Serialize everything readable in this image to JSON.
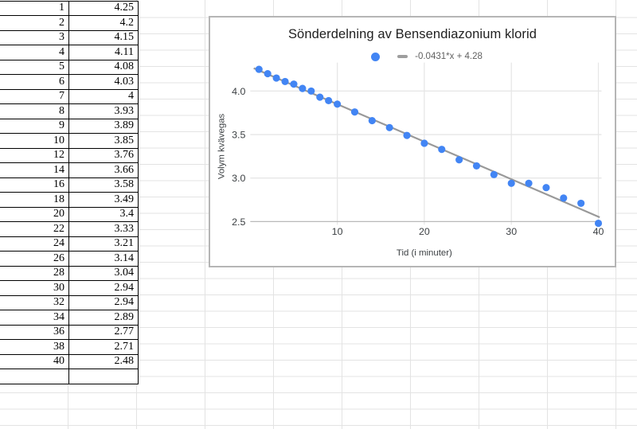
{
  "sheet": {
    "grid_color": "#e3e3e3",
    "table": {
      "rows": [
        [
          "1",
          "4.25"
        ],
        [
          "2",
          "4.2"
        ],
        [
          "3",
          "4.15"
        ],
        [
          "4",
          "4.11"
        ],
        [
          "5",
          "4.08"
        ],
        [
          "6",
          "4.03"
        ],
        [
          "7",
          "4"
        ],
        [
          "8",
          "3.93"
        ],
        [
          "9",
          "3.89"
        ],
        [
          "10",
          "3.85"
        ],
        [
          "12",
          "3.76"
        ],
        [
          "14",
          "3.66"
        ],
        [
          "16",
          "3.58"
        ],
        [
          "18",
          "3.49"
        ],
        [
          "20",
          "3.4"
        ],
        [
          "22",
          "3.33"
        ],
        [
          "24",
          "3.21"
        ],
        [
          "26",
          "3.14"
        ],
        [
          "28",
          "3.04"
        ],
        [
          "30",
          "2.94"
        ],
        [
          "32",
          "2.94"
        ],
        [
          "34",
          "2.89"
        ],
        [
          "36",
          "2.77"
        ],
        [
          "38",
          "2.71"
        ],
        [
          "40",
          "2.48"
        ],
        [
          "",
          ""
        ]
      ]
    }
  },
  "chart_data": {
    "type": "scatter",
    "title": "Sönderdelning av Bensendiazonium klorid",
    "xlabel": "Tid (i minuter)",
    "ylabel": "Volym kvävegas",
    "x": [
      1,
      2,
      3,
      4,
      5,
      6,
      7,
      8,
      9,
      10,
      12,
      14,
      16,
      18,
      20,
      22,
      24,
      26,
      28,
      30,
      32,
      34,
      36,
      38,
      40
    ],
    "y": [
      4.25,
      4.2,
      4.15,
      4.11,
      4.08,
      4.03,
      4,
      3.93,
      3.89,
      3.85,
      3.76,
      3.66,
      3.58,
      3.49,
      3.4,
      3.33,
      3.21,
      3.14,
      3.04,
      2.94,
      2.94,
      2.89,
      2.77,
      2.71,
      2.48
    ],
    "trendline": {
      "slope": -0.0431,
      "intercept": 4.28,
      "label": "-0.0431*x + 4.28"
    },
    "x_ticks": [
      10,
      20,
      30,
      40
    ],
    "y_ticks": [
      2.5,
      3.0,
      3.5,
      4.0
    ],
    "xlim": [
      0,
      40
    ],
    "ylim": [
      2.45,
      4.33
    ],
    "grid": true,
    "legend_position": "top",
    "point_color": "#4285f4",
    "trend_color": "#999999",
    "gridline_color": "#e6e6e6",
    "baseline_color": "#b9b9b9",
    "tick_label_color": "#3c4043"
  }
}
